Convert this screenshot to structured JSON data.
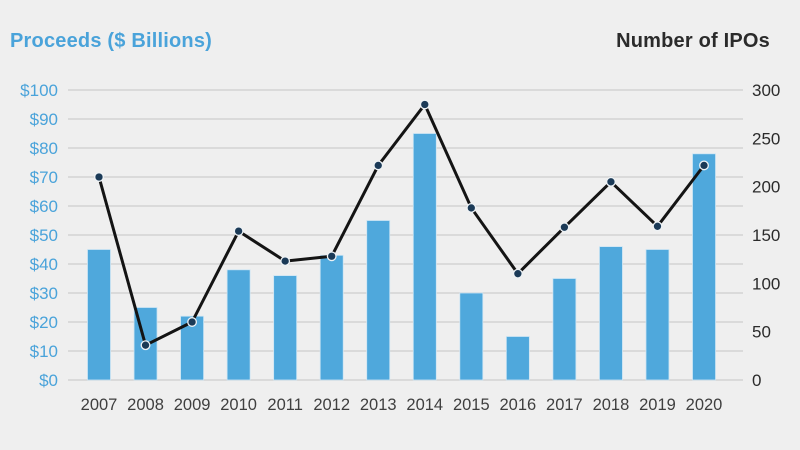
{
  "header": {
    "left_axis_title": "Proceeds ($ Billions)",
    "right_axis_title": "Number of IPOs"
  },
  "colors": {
    "background": "#efefef",
    "bar": "#4fa8dc",
    "bar_edge": "#cde5f4",
    "line": "#141414",
    "marker": "#1b3a57",
    "marker_ring": "#eef2f5",
    "grid": "#d4d4d4",
    "left_axis_text": "#4aa3da",
    "right_axis_text": "#2b2b2b",
    "x_axis_text": "#3f3f3f"
  },
  "chart_data": {
    "type": "combo",
    "categories": [
      "2007",
      "2008",
      "2009",
      "2010",
      "2011",
      "2012",
      "2013",
      "2014",
      "2015",
      "2016",
      "2017",
      "2018",
      "2019",
      "2020"
    ],
    "series": [
      {
        "name": "Proceeds ($ Billions)",
        "type": "bar",
        "axis": "left",
        "values": [
          45,
          25,
          22,
          38,
          36,
          43,
          55,
          85,
          30,
          15,
          35,
          46,
          45,
          78
        ]
      },
      {
        "name": "Number of IPOs",
        "type": "line",
        "axis": "right",
        "values": [
          210,
          36,
          60,
          154,
          123,
          128,
          222,
          285,
          178,
          110,
          158,
          205,
          159,
          222
        ]
      }
    ],
    "left_axis": {
      "title": "Proceeds ($ Billions)",
      "range": [
        0,
        100
      ],
      "tick_values": [
        100,
        90,
        80,
        70,
        60,
        50,
        40,
        30,
        20,
        10,
        0
      ],
      "tick_labels": [
        "$100",
        "$90",
        "$80",
        "$70",
        "$60",
        "$50",
        "$40",
        "$30",
        "$20",
        "$10",
        "$0"
      ]
    },
    "right_axis": {
      "title": "Number of IPOs",
      "range": [
        0,
        300
      ],
      "tick_values": [
        300,
        250,
        200,
        150,
        100,
        50,
        0
      ],
      "tick_labels": [
        "300",
        "250",
        "200",
        "150",
        "100",
        "50",
        "0"
      ]
    },
    "grid": true,
    "legend": "none"
  }
}
